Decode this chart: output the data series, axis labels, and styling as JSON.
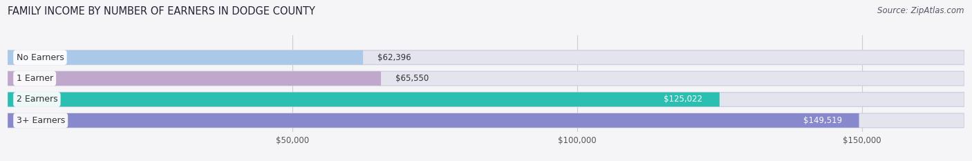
{
  "title": "FAMILY INCOME BY NUMBER OF EARNERS IN DODGE COUNTY",
  "source": "Source: ZipAtlas.com",
  "categories": [
    "No Earners",
    "1 Earner",
    "2 Earners",
    "3+ Earners"
  ],
  "values": [
    62396,
    65550,
    125022,
    149519
  ],
  "bar_colors": [
    "#aac8e8",
    "#c0a8cc",
    "#2abfb0",
    "#8888cc"
  ],
  "label_colors": [
    "#444444",
    "#444444",
    "#ffffff",
    "#ffffff"
  ],
  "value_labels": [
    "$62,396",
    "$65,550",
    "$125,022",
    "$149,519"
  ],
  "background_color": "#f5f5f8",
  "bar_bg_color": "#e4e4ee",
  "xlim_start": 0,
  "xlim_end": 168000,
  "xticks": [
    50000,
    100000,
    150000
  ],
  "xtick_labels": [
    "$50,000",
    "$100,000",
    "$150,000"
  ],
  "title_fontsize": 10.5,
  "source_fontsize": 8.5,
  "label_fontsize": 9,
  "value_fontsize": 8.5,
  "tick_fontsize": 8.5
}
